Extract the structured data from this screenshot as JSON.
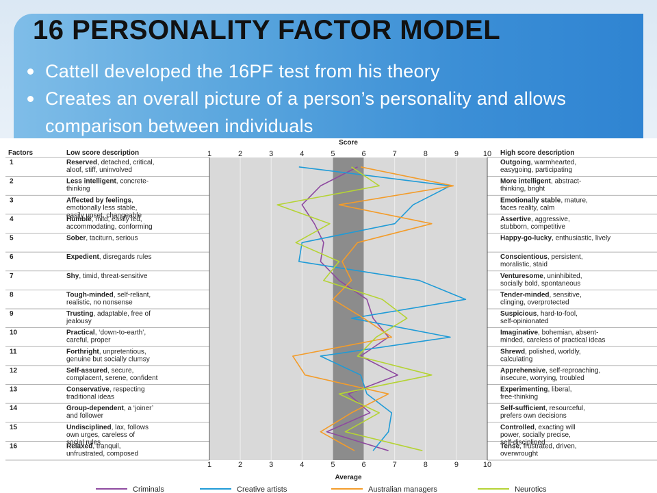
{
  "slide": {
    "title": "16 PERSONALITY FACTOR MODEL",
    "bullets": [
      "Cattell developed the 16PF test from his theory",
      "Creates an overall picture of a person’s personality and allows comparison between individuals"
    ]
  },
  "colors": {
    "header_band": "#3c8fd6",
    "grid_bg": "#d9d9d9",
    "average_band": "#8c8c8c",
    "criminals": "#8e4aa0",
    "creative_artists": "#1f9bd7",
    "australian_managers": "#f39c2a",
    "neurotics": "#b5d334"
  },
  "chart_data": {
    "type": "line",
    "title": "Score",
    "xlabel": "Average",
    "xlim": [
      1,
      10
    ],
    "ticks": [
      "1",
      "2",
      "3",
      "4",
      "5",
      "6",
      "7",
      "8",
      "9",
      "10"
    ],
    "average_band": [
      5,
      6
    ],
    "factors_header": "Factors",
    "low_header": "Low score description",
    "high_header": "High score description",
    "factors": [
      {
        "num": "1",
        "low_bold": "Reserved",
        "low_rest": ", detached, critical,",
        "low2": "aloof, stiff, uninvolved",
        "low3": "",
        "high_bold": "Outgoing",
        "high_rest": ", warmhearted,",
        "high2": "easygoing, participating"
      },
      {
        "num": "2",
        "low_bold": "Less intelligent",
        "low_rest": ", concrete-",
        "low2": "thinking",
        "low3": "",
        "high_bold": "More intelligent",
        "high_rest": ", abstract-",
        "high2": "thinking, bright"
      },
      {
        "num": "3",
        "low_bold": "Affected by feelings",
        "low_rest": ",",
        "low2": "emotionally less stable,",
        "low3": "easily upset, changeable",
        "high_bold": "Emotionally stable",
        "high_rest": ", mature,",
        "high2": "faces reality, calm"
      },
      {
        "num": "4",
        "low_bold": "Humble",
        "low_rest": ", mild, easily led,",
        "low2": "accommodating, conforming",
        "low3": "",
        "high_bold": "Assertive",
        "high_rest": ", aggressive,",
        "high2": "stubborn, competitive"
      },
      {
        "num": "5",
        "low_bold": "Sober",
        "low_rest": ", taciturn, serious",
        "low2": "",
        "low3": "",
        "high_bold": "Happy-go-lucky",
        "high_rest": ", enthusiastic, lively",
        "high2": ""
      },
      {
        "num": "6",
        "low_bold": "Expedient",
        "low_rest": ", disregards rules",
        "low2": "",
        "low3": "",
        "high_bold": "Conscientious",
        "high_rest": ", persistent,",
        "high2": "moralistic, staid"
      },
      {
        "num": "7",
        "low_bold": "Shy",
        "low_rest": ", timid, threat-sensitive",
        "low2": "",
        "low3": "",
        "high_bold": "Venturesome",
        "high_rest": ", uninhibited,",
        "high2": "socially bold, spontaneous"
      },
      {
        "num": "8",
        "low_bold": "Tough-minded",
        "low_rest": ", self-reliant,",
        "low2": "realistic, no nonsense",
        "low3": "",
        "high_bold": "Tender-minded",
        "high_rest": ", sensitive,",
        "high2": "clinging, overprotected"
      },
      {
        "num": "9",
        "low_bold": "Trusting",
        "low_rest": ", adaptable, free of",
        "low2": "jealousy",
        "low3": "",
        "high_bold": "Suspicious",
        "high_rest": ", hard-to-fool,",
        "high2": "self-opinionated"
      },
      {
        "num": "10",
        "low_bold": "Practical",
        "low_rest": ", ‘down-to-earth’,",
        "low2": "careful, proper",
        "low3": "",
        "high_bold": "Imaginative",
        "high_rest": ", bohemian, absent-",
        "high2": "minded, careless of practical ideas"
      },
      {
        "num": "11",
        "low_bold": "Forthright",
        "low_rest": ", unpretentious,",
        "low2": "genuine but socially clumsy",
        "low3": "",
        "high_bold": "Shrewd",
        "high_rest": ", polished, worldly,",
        "high2": "calculating"
      },
      {
        "num": "12",
        "low_bold": "Self-assured",
        "low_rest": ", secure,",
        "low2": "complacent, serene, confident",
        "low3": "",
        "high_bold": "Apprehensive",
        "high_rest": ", self-reproaching,",
        "high2": "insecure, worrying, troubled"
      },
      {
        "num": "13",
        "low_bold": "Conservative",
        "low_rest": ", respecting",
        "low2": "traditional ideas",
        "low3": "",
        "high_bold": "Experimenting",
        "high_rest": ", liberal,",
        "high2": "free-thinking"
      },
      {
        "num": "14",
        "low_bold": "Group-dependent",
        "low_rest": ", a ‘joiner’",
        "low2": "and follower",
        "low3": "",
        "high_bold": "Self-sufficient",
        "high_rest": ", resourceful,",
        "high2": "prefers own decisions"
      },
      {
        "num": "15",
        "low_bold": "Undisciplined",
        "low_rest": ", lax, follows",
        "low2": "own urges, careless of",
        "low3": "social rules",
        "high_bold": "Controlled",
        "high_rest": ", exacting will",
        "high2": "power, socially precise,",
        "high3": "self-disciplined"
      },
      {
        "num": "16",
        "low_bold": "Relaxed",
        "low_rest": ", tranquil,",
        "low2": "unfrustrated, composed",
        "low3": "",
        "high_bold": "Tense",
        "high_rest": ", frustrated, driven,",
        "high2": "overwrought"
      }
    ],
    "series": [
      {
        "name": "Criminals",
        "color": "#8e4aa0",
        "points": [
          [
            5.8,
            1
          ],
          [
            4.6,
            2
          ],
          [
            4.0,
            3
          ],
          [
            4.4,
            4
          ],
          [
            4.7,
            5
          ],
          [
            4.6,
            6
          ],
          [
            5.2,
            7
          ],
          [
            6.1,
            8
          ],
          [
            6.3,
            9
          ],
          [
            6.8,
            10
          ],
          [
            5.9,
            11
          ],
          [
            7.1,
            12
          ],
          [
            5.5,
            13
          ],
          [
            6.2,
            14
          ],
          [
            4.8,
            15
          ],
          [
            6.8,
            16
          ]
        ]
      },
      {
        "name": "Creative artists",
        "color": "#1f9bd7",
        "points": [
          [
            3.9,
            1
          ],
          [
            8.8,
            2
          ],
          [
            7.6,
            3
          ],
          [
            7.0,
            4
          ],
          [
            4.0,
            5
          ],
          [
            3.9,
            6
          ],
          [
            7.8,
            7
          ],
          [
            9.3,
            8
          ],
          [
            5.6,
            9
          ],
          [
            8.8,
            10
          ],
          [
            4.6,
            11
          ],
          [
            5.9,
            12
          ],
          [
            6.1,
            13
          ],
          [
            6.9,
            14
          ],
          [
            6.8,
            15
          ],
          [
            6.3,
            16
          ]
        ]
      },
      {
        "name": "Australian managers",
        "color": "#f39c2a",
        "points": [
          [
            5.9,
            1
          ],
          [
            8.9,
            2
          ],
          [
            5.2,
            3
          ],
          [
            8.2,
            4
          ],
          [
            5.8,
            5
          ],
          [
            5.3,
            6
          ],
          [
            5.6,
            7
          ],
          [
            5.0,
            8
          ],
          [
            6.0,
            9
          ],
          [
            6.9,
            10
          ],
          [
            3.7,
            11
          ],
          [
            4.1,
            12
          ],
          [
            6.8,
            13
          ],
          [
            5.6,
            14
          ],
          [
            4.6,
            15
          ],
          [
            5.7,
            16
          ]
        ]
      },
      {
        "name": "Neurotics",
        "color": "#b5d334",
        "points": [
          [
            5.6,
            1
          ],
          [
            6.5,
            2
          ],
          [
            3.2,
            3
          ],
          [
            4.9,
            4
          ],
          [
            3.8,
            5
          ],
          [
            5.2,
            6
          ],
          [
            4.7,
            7
          ],
          [
            6.6,
            8
          ],
          [
            7.4,
            9
          ],
          [
            6.4,
            10
          ],
          [
            5.8,
            11
          ],
          [
            8.2,
            12
          ],
          [
            5.2,
            13
          ],
          [
            6.5,
            14
          ],
          [
            5.4,
            15
          ],
          [
            7.9,
            16
          ]
        ]
      }
    ]
  }
}
